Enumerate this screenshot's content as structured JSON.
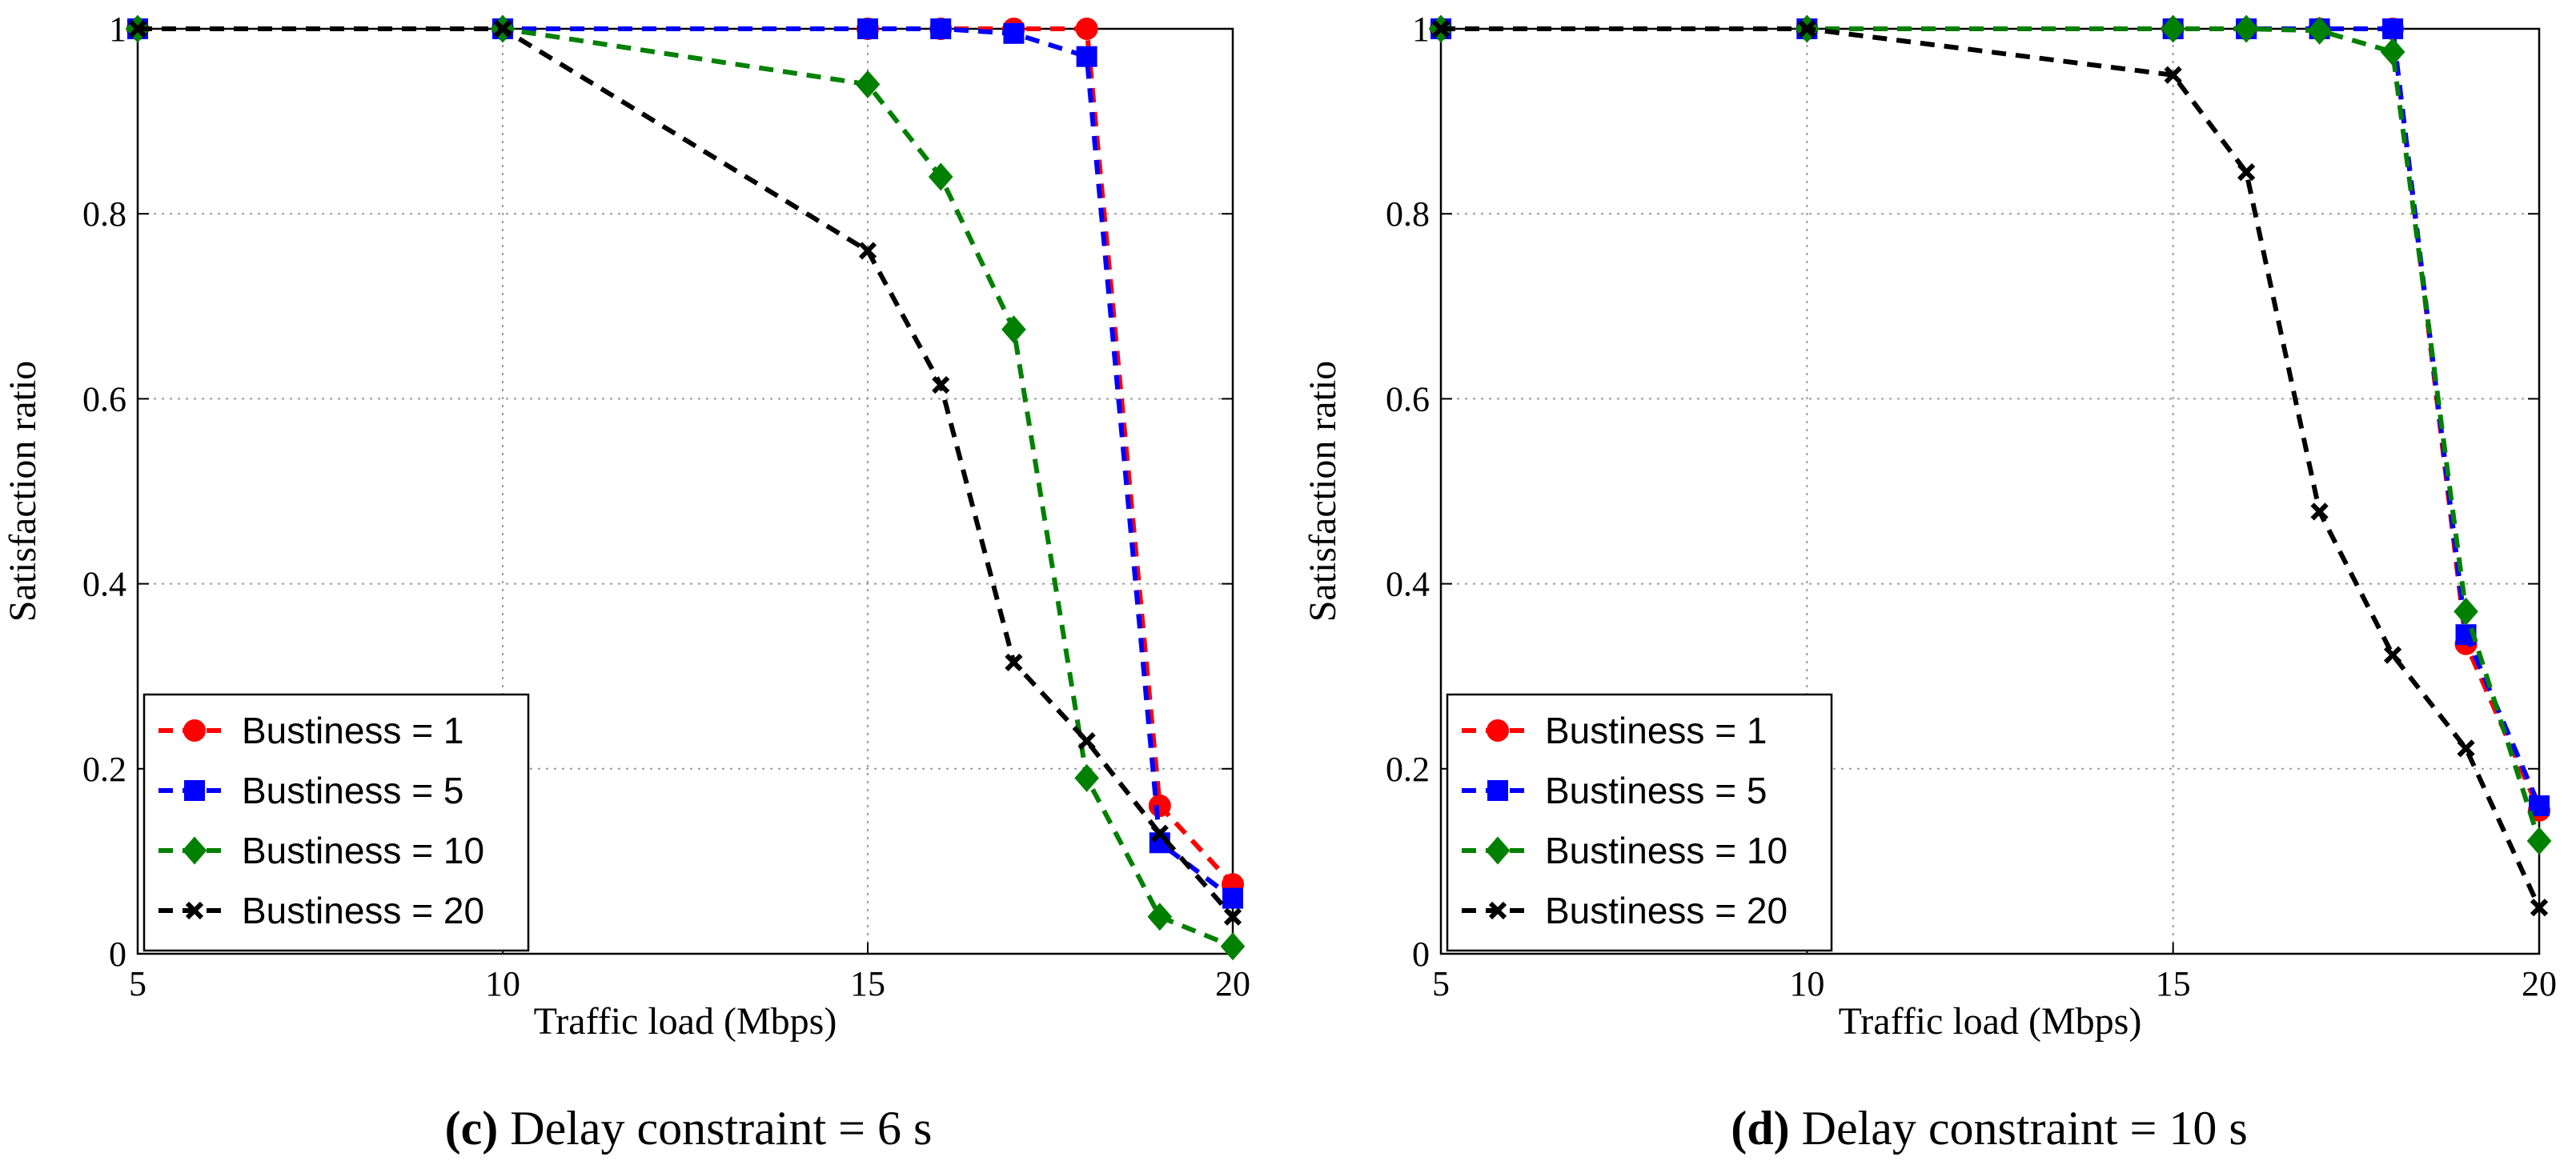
{
  "chart_data": [
    {
      "type": "line",
      "caption_letter": "c",
      "caption_text": "Delay constraint = 6 s",
      "xlabel": "Traffic load (Mbps)",
      "ylabel": "Satisfaction ratio",
      "xlim": [
        5,
        20
      ],
      "ylim": [
        0,
        1
      ],
      "xticks": [
        "5",
        "10",
        "15",
        "20"
      ],
      "yticks": [
        "0",
        "0.2",
        "0.4",
        "0.6",
        "0.8",
        "1"
      ],
      "grid": true,
      "legend_position": "bottom-left",
      "x": [
        5,
        10,
        15,
        16,
        17,
        18,
        19,
        20
      ],
      "series": [
        {
          "name": "Bustiness = 1",
          "color": "#ff0000",
          "marker": "circle",
          "values": [
            1,
            1,
            1,
            1,
            1,
            1,
            0.16,
            0.075
          ]
        },
        {
          "name": "Bustiness = 5",
          "color": "#0000ff",
          "marker": "square",
          "values": [
            1,
            1,
            1,
            1,
            0.995,
            0.97,
            0.12,
            0.06
          ]
        },
        {
          "name": "Bustiness = 10",
          "color": "#008000",
          "marker": "diamond",
          "values": [
            1,
            1,
            0.94,
            0.84,
            0.675,
            0.19,
            0.04,
            0.008
          ]
        },
        {
          "name": "Bustiness = 20",
          "color": "#000000",
          "marker": "x",
          "values": [
            1,
            1,
            0.76,
            0.615,
            0.315,
            0.23,
            0.13,
            0.04
          ]
        }
      ]
    },
    {
      "type": "line",
      "caption_letter": "d",
      "caption_text": "Delay constraint = 10 s",
      "xlabel": "Traffic load (Mbps)",
      "ylabel": "Satisfaction ratio",
      "xlim": [
        5,
        20
      ],
      "ylim": [
        0,
        1
      ],
      "xticks": [
        "5",
        "10",
        "15",
        "20"
      ],
      "yticks": [
        "0",
        "0.2",
        "0.4",
        "0.6",
        "0.8",
        "1"
      ],
      "grid": true,
      "legend_position": "bottom-left",
      "x": [
        5,
        10,
        15,
        16,
        17,
        18,
        19,
        20
      ],
      "series": [
        {
          "name": "Bustiness = 1",
          "color": "#ff0000",
          "marker": "circle",
          "values": [
            1,
            1,
            1,
            1,
            1,
            1,
            0.335,
            0.155
          ]
        },
        {
          "name": "Bustiness = 5",
          "color": "#0000ff",
          "marker": "square",
          "values": [
            1,
            1,
            1,
            1,
            1,
            1,
            0.345,
            0.16
          ]
        },
        {
          "name": "Bustiness = 10",
          "color": "#008000",
          "marker": "diamond",
          "values": [
            1,
            1,
            1,
            1,
            0.998,
            0.975,
            0.37,
            0.122
          ]
        },
        {
          "name": "Bustiness = 20",
          "color": "#000000",
          "marker": "x",
          "values": [
            1,
            1,
            0.95,
            0.845,
            0.478,
            0.323,
            0.222,
            0.05
          ]
        }
      ]
    }
  ]
}
